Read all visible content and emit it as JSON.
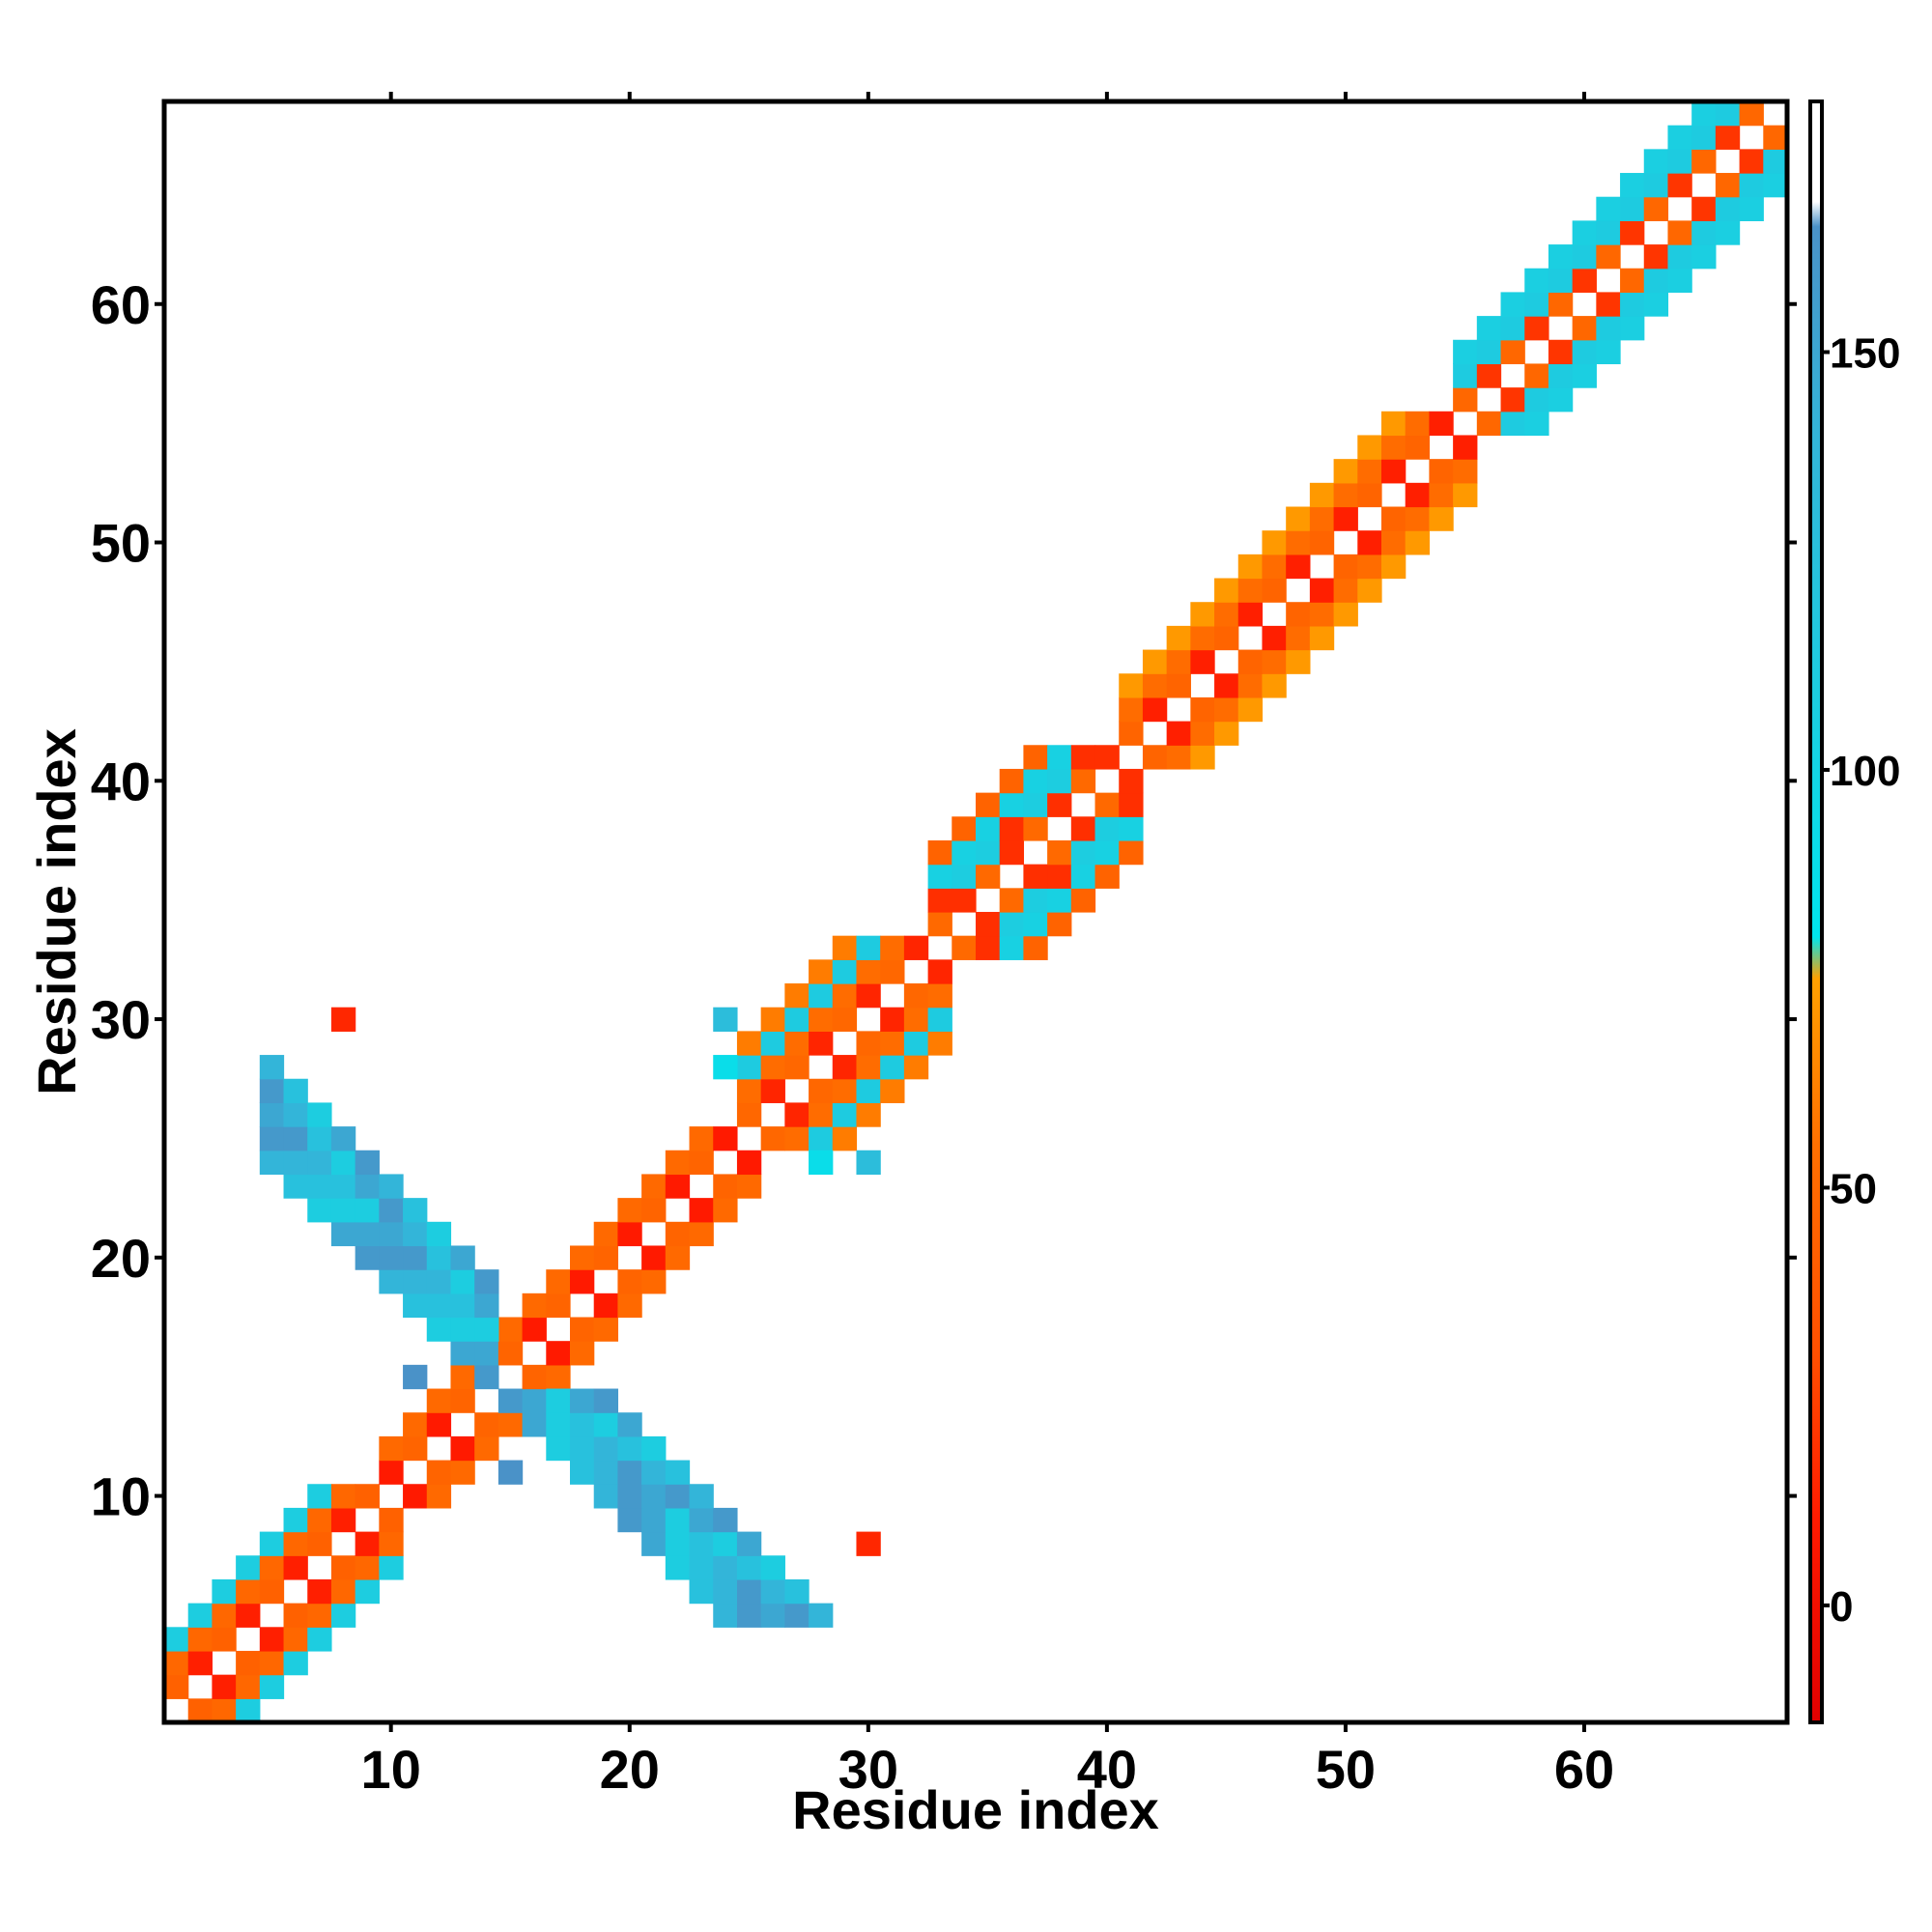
{
  "chart_data": {
    "type": "heatmap",
    "title": "",
    "xlabel": "Residue index",
    "ylabel": "Residue index",
    "xlim": [
      0.5,
      68.5
    ],
    "ylim": [
      0.5,
      68.5
    ],
    "xticks": [
      10,
      20,
      30,
      40,
      50,
      60
    ],
    "yticks": [
      10,
      20,
      30,
      40,
      50,
      60
    ],
    "grid": false,
    "colorbar": {
      "range": [
        -14,
        180
      ],
      "ticks": [
        0,
        50,
        100,
        150
      ],
      "stops": [
        {
          "value": -14,
          "color": "#e00000"
        },
        {
          "value": 10,
          "color": "#ff1a00"
        },
        {
          "value": 30,
          "color": "#ff4f00"
        },
        {
          "value": 55,
          "color": "#ff7000"
        },
        {
          "value": 75,
          "color": "#ffa000"
        },
        {
          "value": 80,
          "color": "#00e5ee"
        },
        {
          "value": 110,
          "color": "#1dcde0"
        },
        {
          "value": 140,
          "color": "#33b5d9"
        },
        {
          "value": 165,
          "color": "#4a92c8"
        },
        {
          "value": 168,
          "color": "#ffffff"
        },
        {
          "value": 180,
          "color": "#ffffff"
        }
      ]
    },
    "helix_bands": [
      {
        "start": 1,
        "end": 10,
        "widths": [
          1,
          2,
          3
        ],
        "even_value": 48,
        "odd1_value": 12,
        "odd2_value": 44,
        "third_value": 110
      },
      {
        "start": 10,
        "end": 25,
        "widths": [
          1,
          2
        ],
        "even_value": 50,
        "odd1_value": 10,
        "odd2_value": 46
      },
      {
        "start": 25,
        "end": 33,
        "widths": [
          1,
          2,
          3,
          4
        ],
        "even_value": 52,
        "odd1_value": 14,
        "odd2_value": 48,
        "third_value": 112,
        "fourth_value": 60
      },
      {
        "start": 33,
        "end": 41,
        "widths": [
          1,
          2,
          3,
          4
        ],
        "even_value": 110,
        "odd1_value": 18,
        "odd2_value": 50,
        "third_value": 105,
        "fourth_value": 45
      },
      {
        "start": 41,
        "end": 55,
        "widths": [
          1,
          2,
          3
        ],
        "even_value": 52,
        "odd1_value": 12,
        "odd2_value": 46,
        "third_value": 72
      },
      {
        "start": 55,
        "end": 68,
        "widths": [
          1,
          2,
          3
        ],
        "even_value": 112,
        "odd1_value": 20,
        "odd2_value": 48,
        "third_value": 108
      }
    ],
    "sheet_band": {
      "anti_sum_center": 31,
      "diag_start": 5,
      "diag_end": 14,
      "half_width": 2,
      "values": [
        150,
        160,
        140,
        125,
        110
      ]
    },
    "extra_cells": [
      {
        "x": 8,
        "y": 30,
        "value": 15
      },
      {
        "x": 30,
        "y": 8,
        "value": 15
      },
      {
        "x": 15,
        "y": 15,
        "value": 95
      },
      {
        "x": 13,
        "y": 13,
        "value": 100
      },
      {
        "x": 11,
        "y": 15,
        "value": 165
      },
      {
        "x": 15,
        "y": 11,
        "value": 165
      },
      {
        "x": 14,
        "y": 14,
        "value": 40
      },
      {
        "x": 24,
        "y": 30,
        "value": 130
      },
      {
        "x": 30,
        "y": 24,
        "value": 130
      },
      {
        "x": 24,
        "y": 28,
        "value": 90
      },
      {
        "x": 28,
        "y": 24,
        "value": 90
      }
    ]
  }
}
